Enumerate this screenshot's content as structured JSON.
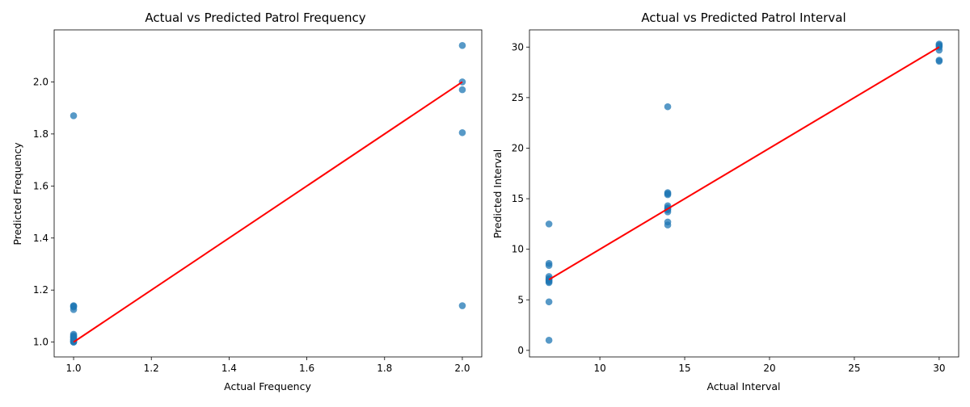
{
  "chart_data": [
    {
      "type": "scatter",
      "title": "Actual vs Predicted Patrol Frequency",
      "xlabel": "Actual Frequency",
      "ylabel": "Predicted Frequency",
      "xlim": [
        0.95,
        2.05
      ],
      "ylim": [
        0.943,
        2.2
      ],
      "xticks": [
        1.0,
        1.2,
        1.4,
        1.6,
        1.8,
        2.0
      ],
      "xtick_labels": [
        "1.0",
        "1.2",
        "1.4",
        "1.6",
        "1.8",
        "2.0"
      ],
      "yticks": [
        1.0,
        1.2,
        1.4,
        1.6,
        1.8,
        2.0
      ],
      "ytick_labels": [
        "1.0",
        "1.2",
        "1.4",
        "1.6",
        "1.8",
        "2.0"
      ],
      "points": {
        "x": [
          1,
          1,
          1,
          1,
          1,
          1,
          1,
          1,
          1,
          1,
          1,
          1,
          1,
          1,
          1,
          1,
          2,
          2,
          2,
          2,
          2
        ],
        "y": [
          1.87,
          1.14,
          1.135,
          1.125,
          1.03,
          1.025,
          1.02,
          1.015,
          1.01,
          1.005,
          1.0,
          1.0,
          1.02,
          1.008,
          1.003,
          1.138,
          2.14,
          2.0,
          1.97,
          1.805,
          1.14
        ]
      },
      "fit_line": {
        "x": [
          1,
          2
        ],
        "y": [
          1.0,
          2.0
        ]
      },
      "point_color": "#1f77b4",
      "line_color": "#ff0000"
    },
    {
      "type": "scatter",
      "title": "Actual vs Predicted Patrol Interval",
      "xlabel": "Actual Interval",
      "ylabel": "Predicted Interval",
      "xlim": [
        5.85,
        31.15
      ],
      "ylim": [
        -0.65,
        31.7
      ],
      "xticks": [
        10,
        15,
        20,
        25,
        30
      ],
      "xtick_labels": [
        "10",
        "15",
        "20",
        "25",
        "30"
      ],
      "yticks": [
        0,
        5,
        10,
        15,
        20,
        25,
        30
      ],
      "ytick_labels": [
        "0",
        "5",
        "10",
        "15",
        "20",
        "25",
        "30"
      ],
      "points": {
        "x": [
          7,
          7,
          7,
          7,
          7,
          7,
          7,
          7,
          7,
          7,
          7,
          14,
          14,
          14,
          14,
          14,
          14,
          14,
          14,
          14,
          14,
          14,
          30,
          30,
          30,
          30,
          30,
          30,
          30
        ],
        "y": [
          12.5,
          8.6,
          8.4,
          7.3,
          7.0,
          6.9,
          6.8,
          6.7,
          4.8,
          1.0,
          7.1,
          24.1,
          15.6,
          15.5,
          14.3,
          14.1,
          14.0,
          13.7,
          12.7,
          12.4,
          13.9,
          15.4,
          30.3,
          30.2,
          30.1,
          30.0,
          29.7,
          28.7,
          28.6
        ],
        "lonely": []
      },
      "fit_line": {
        "x": [
          7,
          30
        ],
        "y": [
          7.0,
          30.0
        ]
      },
      "point_color": "#1f77b4",
      "line_color": "#ff0000"
    }
  ]
}
